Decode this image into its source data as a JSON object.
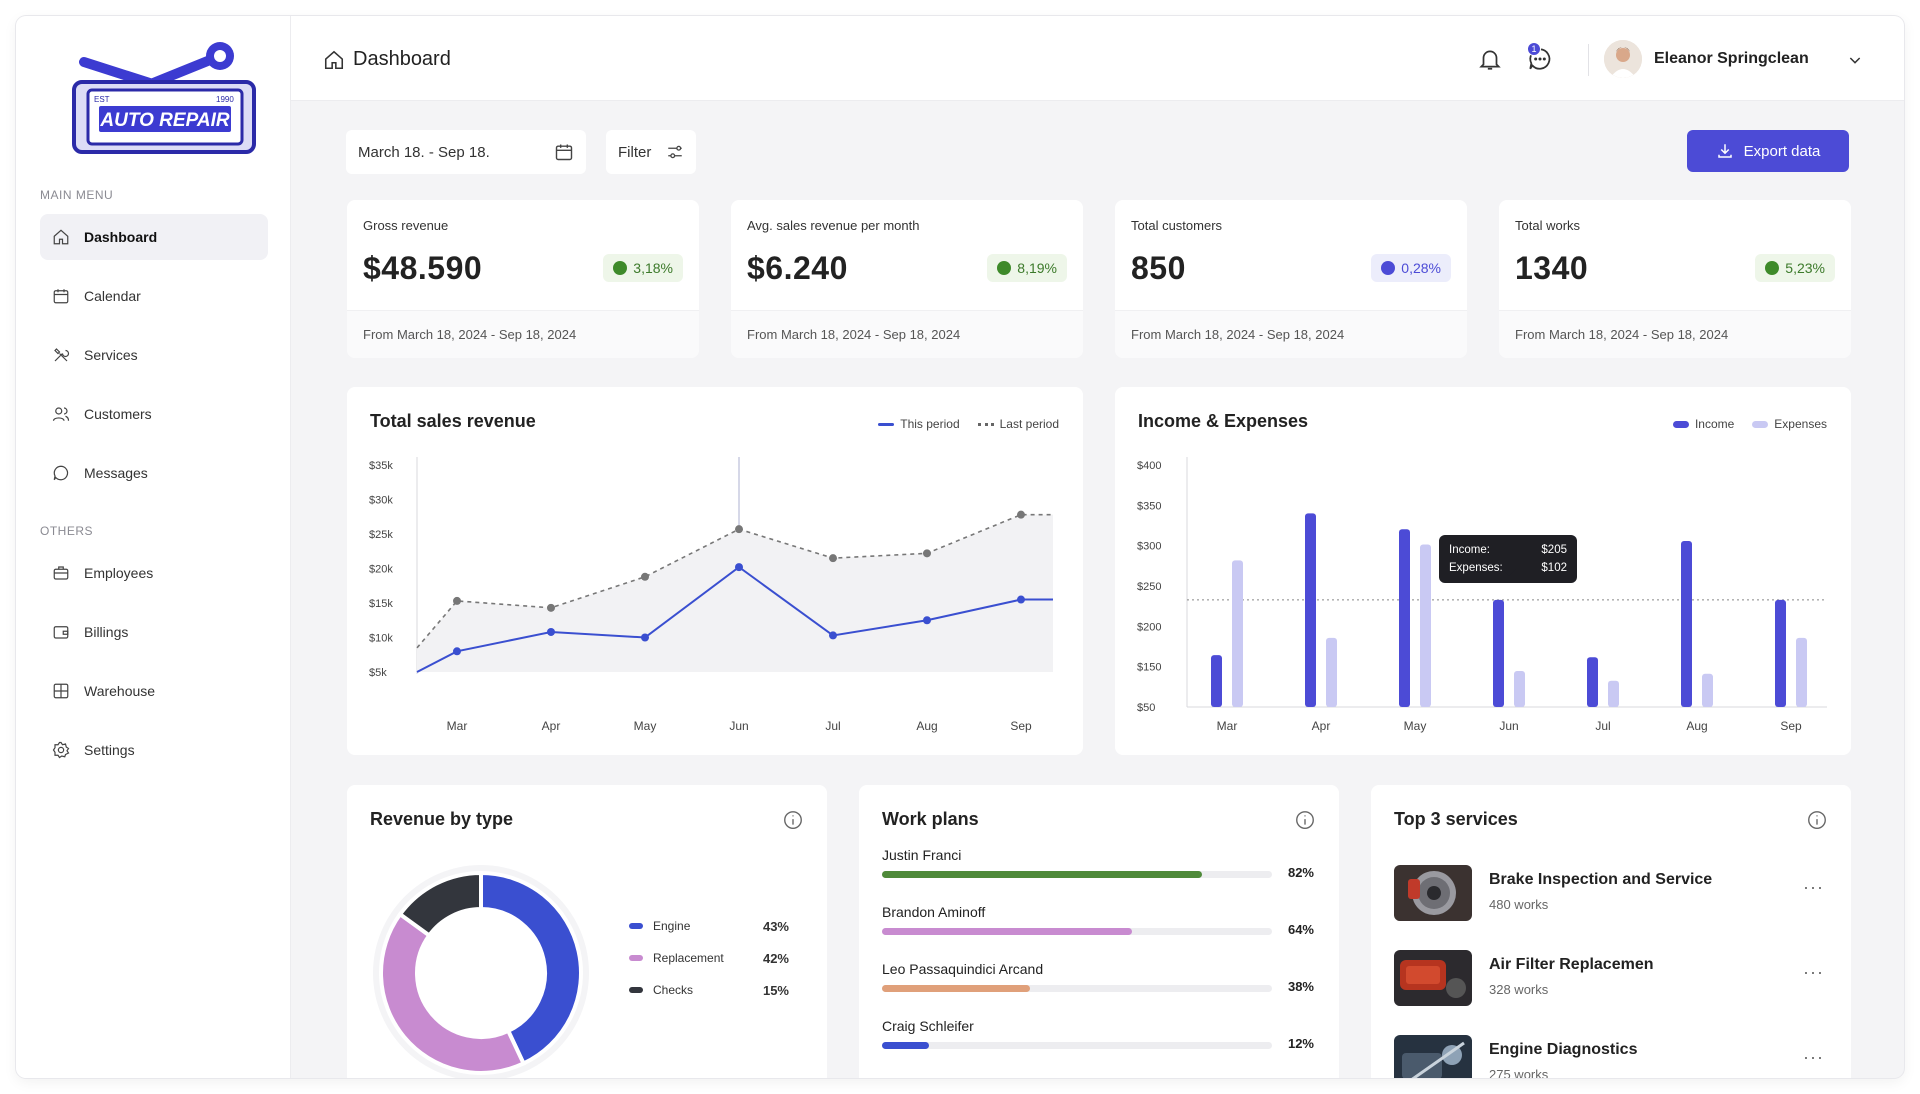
{
  "brand": {
    "logo_text": "AUTO REPAIR",
    "est": "EST",
    "year": "1990"
  },
  "sidebar": {
    "main_heading": "MAIN MENU",
    "others_heading": "OTHERS",
    "items": [
      {
        "label": "Dashboard",
        "icon": "home-icon"
      },
      {
        "label": "Calendar",
        "icon": "calendar-icon"
      },
      {
        "label": "Services",
        "icon": "tools-icon"
      },
      {
        "label": "Customers",
        "icon": "users-icon"
      },
      {
        "label": "Messages",
        "icon": "chat-icon"
      },
      {
        "label": "Employees",
        "icon": "briefcase-icon"
      },
      {
        "label": "Billings",
        "icon": "wallet-icon"
      },
      {
        "label": "Warehouse",
        "icon": "grid-icon"
      },
      {
        "label": "Settings",
        "icon": "gear-icon"
      }
    ]
  },
  "header": {
    "title": "Dashboard",
    "username": "Eleanor Springclean",
    "messages_badge": "1"
  },
  "toolbar": {
    "date_range": "March 18. - Sep 18.",
    "filter_label": "Filter",
    "export_label": "Export data"
  },
  "kpis": [
    {
      "label": "Gross revenue",
      "value": "$48.590",
      "change": "3,18%",
      "tone": "green",
      "footer": "From March 18, 2024 - Sep 18, 2024"
    },
    {
      "label": "Avg. sales revenue per month",
      "value": "$6.240",
      "change": "8,19%",
      "tone": "green",
      "footer": "From March 18, 2024 - Sep 18, 2024"
    },
    {
      "label": "Total customers",
      "value": "850",
      "change": "0,28%",
      "tone": "blue",
      "footer": "From March 18, 2024 - Sep 18, 2024"
    },
    {
      "label": "Total works",
      "value": "1340",
      "change": "5,23%",
      "tone": "green",
      "footer": "From March 18, 2024 - Sep 18, 2024"
    }
  ],
  "colors": {
    "accent": "#4c4bd6",
    "expenses": "#c9c9f3",
    "green": "#3e8a2a"
  },
  "chart_data": [
    {
      "type": "line",
      "title": "Total sales revenue",
      "categories": [
        "Mar",
        "Apr",
        "May",
        "Jun",
        "Jul",
        "Aug",
        "Sep"
      ],
      "yticks": [
        "$35k",
        "$30k",
        "$25k",
        "$20k",
        "$15k",
        "$10k",
        "$5k"
      ],
      "ylim": [
        5,
        35
      ],
      "unit": "k",
      "series": [
        {
          "name": "This period",
          "values": [
            8,
            10.8,
            10,
            20.2,
            10.3,
            12.5,
            15.5
          ],
          "start": 5,
          "end": 15.5
        },
        {
          "name": "Last period",
          "values": [
            15.3,
            14.3,
            18.8,
            25.7,
            21.5,
            22.2,
            27.8
          ],
          "start": 8.5,
          "end": 27.8
        }
      ],
      "highlight_category": "Jun"
    },
    {
      "type": "bar",
      "title": "Income & Expenses",
      "categories": [
        "Mar",
        "Apr",
        "May",
        "Jun",
        "Jul",
        "Aug",
        "Sep"
      ],
      "yticks": [
        "$400",
        "$350",
        "$300",
        "$250",
        "$200",
        "$150",
        "$50"
      ],
      "ylim": [
        50,
        400
      ],
      "series": [
        {
          "name": "Income",
          "values": [
            125,
            330,
            307,
            205,
            122,
            290,
            205
          ]
        },
        {
          "name": "Expenses",
          "values": [
            262,
            150,
            285,
            102,
            88,
            98,
            150
          ]
        }
      ],
      "tooltip": {
        "income_label": "Income:",
        "income_value": "$205",
        "expenses_label": "Expenses:",
        "expenses_value": "$102"
      }
    },
    {
      "type": "pie",
      "title": "Revenue by type",
      "series": [
        {
          "name": "Engine",
          "value": 43,
          "label": "43%",
          "color": "#3a4fd0"
        },
        {
          "name": "Replacement",
          "value": 42,
          "label": "42%",
          "color": "#c88bd0"
        },
        {
          "name": "Checks",
          "value": 15,
          "label": "15%",
          "color": "#33363d"
        }
      ]
    }
  ],
  "work_plans": {
    "title": "Work plans",
    "rows": [
      {
        "name": "Justin Franci",
        "percent": 82,
        "label": "82%",
        "color": "#4f8a3a"
      },
      {
        "name": "Brandon Aminoff",
        "percent": 64,
        "label": "64%",
        "color": "#c88bd0"
      },
      {
        "name": "Leo Passaquindici Arcand",
        "percent": 38,
        "label": "38%",
        "color": "#e0a07a"
      },
      {
        "name": "Craig Schleifer",
        "percent": 12,
        "label": "12%",
        "color": "#3a4fd0"
      }
    ]
  },
  "top_services": {
    "title": "Top 3 services",
    "items": [
      {
        "name": "Brake Inspection and Service",
        "works": "480 works"
      },
      {
        "name": "Air Filter Replacemen",
        "works": "328 works"
      },
      {
        "name": "Engine Diagnostics",
        "works": "275 works"
      }
    ]
  }
}
